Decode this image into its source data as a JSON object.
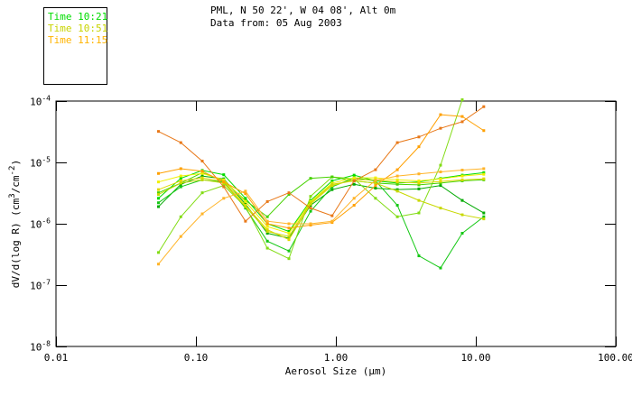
{
  "header": {
    "title_line1": "PML, N 50 22', W 04 08', Alt 0m",
    "title_line2": "Data from: 05 Aug 2003"
  },
  "legend": {
    "items": [
      {
        "label": "Time 10:21",
        "color": "#00dc00"
      },
      {
        "label": "Time 10:51",
        "color": "#c8d400"
      },
      {
        "label": "Time 11:15",
        "color": "#ffb400"
      }
    ]
  },
  "axes": {
    "x_title": "Aerosol Size (µm)",
    "y_title_parts": {
      "p1": "dV/d(log R) (cm",
      "sup1": "3",
      "p2": "/cm",
      "sup2": "-2",
      "p3": ")"
    },
    "x_ticks": [
      {
        "label": "0.01",
        "value": 0.01
      },
      {
        "label": "0.10",
        "value": 0.1
      },
      {
        "label": "1.00",
        "value": 1.0
      },
      {
        "label": "10.00",
        "value": 10.0
      },
      {
        "label": "100.00",
        "value": 100.0
      }
    ],
    "y_ticks": [
      {
        "base": "10",
        "exp": "-4",
        "value": 0.0001
      },
      {
        "base": "10",
        "exp": "-5",
        "value": 1e-05
      },
      {
        "base": "10",
        "exp": "-6",
        "value": 1e-06
      },
      {
        "base": "10",
        "exp": "-7",
        "value": 1e-07
      },
      {
        "base": "10",
        "exp": "-8",
        "value": 1e-08
      }
    ]
  },
  "chart_data": {
    "type": "line",
    "title": "PML, N 50 22', W 04 08', Alt 0m — Data from: 05 Aug 2003",
    "xlabel": "Aerosol Size (um)",
    "ylabel": "dV/d(log R) (cm3/cm-2)",
    "x_scale": "log",
    "y_scale": "log",
    "xlim": [
      0.01,
      100
    ],
    "ylim": [
      1e-08,
      0.0001
    ],
    "grid": false,
    "legend_position": "top-left",
    "marker": "square",
    "x": [
      0.054,
      0.078,
      0.111,
      0.158,
      0.226,
      0.324,
      0.462,
      0.66,
      0.94,
      1.35,
      1.92,
      2.75,
      3.92,
      5.6,
      8.0,
      11.4
    ],
    "series": [
      {
        "name": "Time 10:21 run a",
        "time": "10:21",
        "color": "#00dc00",
        "values": [
          2.6e-06,
          5.5e-06,
          7.4e-06,
          6.3e-06,
          2.6e-06,
          1e-06,
          7.5e-07,
          2.4e-06,
          5e-06,
          6.2e-06,
          5e-06,
          4.6e-06,
          4.8e-06,
          5.5e-06,
          6.2e-06,
          6.8e-06
        ]
      },
      {
        "name": "Time 10:21 run b",
        "time": "10:21",
        "color": "#00aa00",
        "values": [
          1.9e-06,
          4.4e-06,
          6e-06,
          5.4e-06,
          2.1e-06,
          7e-07,
          5.8e-07,
          2e-06,
          3.6e-06,
          4.4e-06,
          3.8e-06,
          3.6e-06,
          3.7e-06,
          4.2e-06,
          2.4e-06,
          1.5e-06
        ]
      },
      {
        "name": "Time 10:21 run c",
        "time": "10:21",
        "color": "#14c814",
        "values": [
          2.2e-06,
          4e-06,
          5.2e-06,
          4.8e-06,
          1.8e-06,
          5.2e-07,
          3.6e-07,
          1.6e-06,
          4e-06,
          5.6e-06,
          5e-06,
          2e-06,
          3e-07,
          1.9e-07,
          7e-07,
          1.3e-06
        ]
      },
      {
        "name": "Time 10:21 run d",
        "time": "10:21",
        "color": "#82dc14",
        "values": [
          3.4e-07,
          1.3e-06,
          3.2e-06,
          4.2e-06,
          1.9e-06,
          4e-07,
          2.7e-07,
          2.8e-06,
          5.8e-06,
          5.4e-06,
          2.6e-06,
          1.3e-06,
          1.5e-06,
          9e-06,
          0.000105,
          null
        ]
      },
      {
        "name": "Time 10:21 run e",
        "time": "10:21",
        "color": "#46d200",
        "values": [
          3.2e-06,
          4.6e-06,
          6.8e-06,
          5e-06,
          2.4e-06,
          1.3e-06,
          3e-06,
          5.5e-06,
          5.8e-06,
          5e-06,
          4.6e-06,
          4.4e-06,
          4.3e-06,
          4.6e-06,
          5e-06,
          5.2e-06
        ]
      },
      {
        "name": "Time 10:51 run a",
        "time": "10:51",
        "color": "#f0f000",
        "values": [
          4.8e-06,
          6e-06,
          6.6e-06,
          5.2e-06,
          2.3e-06,
          9e-07,
          7e-07,
          2.3e-06,
          4.6e-06,
          5.6e-06,
          5.6e-06,
          5.2e-06,
          5e-06,
          5.4e-06,
          6e-06,
          6.4e-06
        ]
      },
      {
        "name": "Time 10:51 run b",
        "time": "10:51",
        "color": "#e0d800",
        "values": [
          3.6e-06,
          5e-06,
          5.6e-06,
          4.9e-06,
          2e-06,
          8e-07,
          5.5e-07,
          2.1e-06,
          4.2e-06,
          5.2e-06,
          5.2e-06,
          4.8e-06,
          4.6e-06,
          4.9e-06,
          5.2e-06,
          5.4e-06
        ]
      },
      {
        "name": "Time 10:51 run c",
        "time": "10:51",
        "color": "#c8d800",
        "values": [
          3e-06,
          4.6e-06,
          5.2e-06,
          4.6e-06,
          1.9e-06,
          7.5e-07,
          6.2e-07,
          2.2e-06,
          4.4e-06,
          5e-06,
          4.6e-06,
          3.4e-06,
          2.4e-06,
          1.8e-06,
          1.4e-06,
          1.2e-06
        ]
      },
      {
        "name": "Time 11:15 run a",
        "time": "11:15",
        "color": "#e87818",
        "values": [
          3.2e-05,
          2.1e-05,
          1.05e-05,
          4e-06,
          1.1e-06,
          2.3e-06,
          3.2e-06,
          1.8e-06,
          1.35e-06,
          5e-06,
          7.6e-06,
          2.1e-05,
          2.6e-05,
          3.6e-05,
          4.6e-05,
          8.1e-05
        ]
      },
      {
        "name": "Time 11:15 run b",
        "time": "11:15",
        "color": "#ffa000",
        "values": [
          6.6e-06,
          7.9e-06,
          7.2e-06,
          4.8e-06,
          3.1e-06,
          1e-06,
          8.5e-07,
          9.5e-07,
          1.05e-06,
          2e-06,
          4.2e-06,
          7.6e-06,
          1.8e-05,
          6e-05,
          5.6e-05,
          3.3e-05
        ]
      },
      {
        "name": "Time 11:15 run c",
        "time": "11:15",
        "color": "#ffb428",
        "values": [
          2.2e-07,
          6.2e-07,
          1.45e-06,
          2.6e-06,
          3.4e-06,
          1.1e-06,
          1e-06,
          1e-06,
          1.1e-06,
          2.6e-06,
          5.1e-06,
          6e-06,
          6.5e-06,
          7e-06,
          7.5e-06,
          7.9e-06
        ]
      }
    ]
  },
  "plot": {
    "frame_color": "#000000",
    "background": "#ffffff"
  }
}
